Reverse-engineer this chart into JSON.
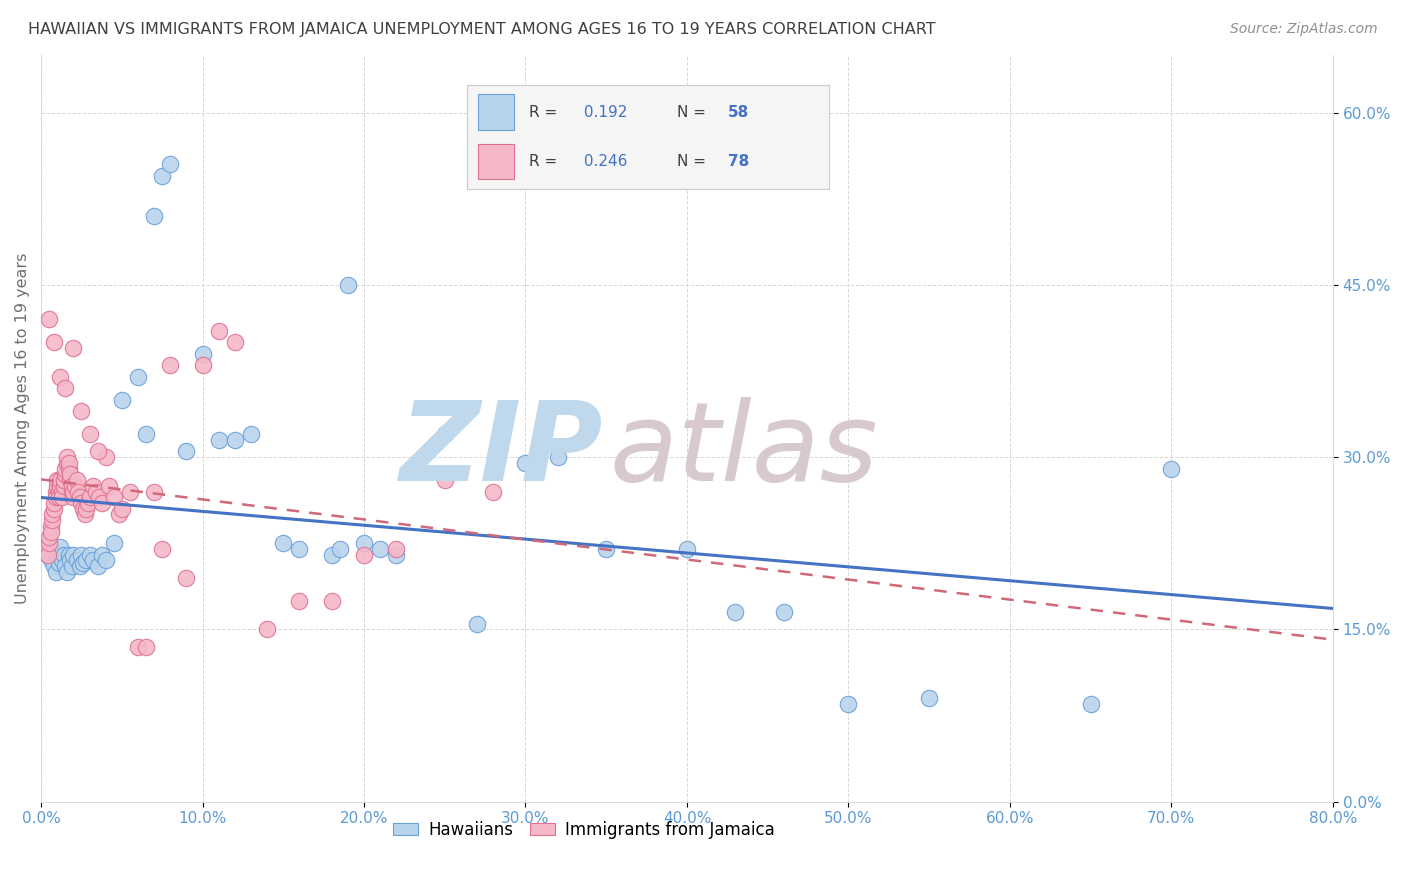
{
  "title": "HAWAIIAN VS IMMIGRANTS FROM JAMAICA UNEMPLOYMENT AMONG AGES 16 TO 19 YEARS CORRELATION CHART",
  "source": "Source: ZipAtlas.com",
  "ylabel": "Unemployment Among Ages 16 to 19 years",
  "xlim": [
    0,
    0.8
  ],
  "ylim": [
    0,
    0.65
  ],
  "x_ticks": [
    0.0,
    0.1,
    0.2,
    0.3,
    0.4,
    0.5,
    0.6,
    0.7,
    0.8
  ],
  "y_ticks": [
    0.0,
    0.15,
    0.3,
    0.45,
    0.6
  ],
  "hawaiians_R": 0.192,
  "hawaiians_N": 58,
  "jamaica_R": 0.246,
  "jamaica_N": 78,
  "hawaiian_fill": "#b8d4ec",
  "hawaiian_edge": "#6a9fd8",
  "jamaica_fill": "#f5b8c8",
  "jamaica_edge": "#e07090",
  "trendline_hawaiian": "#4472c4",
  "trendline_jamaica": "#d06878",
  "tick_color": "#5b9bd5",
  "ylabel_color": "#707070",
  "title_color": "#404040",
  "source_color": "#909090",
  "grid_color": "#d8d8d8",
  "background": "#ffffff",
  "legend_bg": "#f5f5f5",
  "legend_border": "#cccccc",
  "legend_text_color": "#404040",
  "legend_value_color": "#4472c4",
  "watermark_zip_color": "#c0d8ec",
  "watermark_atlas_color": "#d8c8d0",
  "hawaiian_x": [
    0.004,
    0.006,
    0.007,
    0.008,
    0.009,
    0.01,
    0.011,
    0.012,
    0.013,
    0.014,
    0.015,
    0.016,
    0.017,
    0.018,
    0.019,
    0.02,
    0.022,
    0.024,
    0.025,
    0.026,
    0.028,
    0.03,
    0.032,
    0.035,
    0.038,
    0.04,
    0.045,
    0.05,
    0.06,
    0.065,
    0.07,
    0.075,
    0.08,
    0.09,
    0.1,
    0.11,
    0.12,
    0.13,
    0.15,
    0.16,
    0.18,
    0.185,
    0.19,
    0.2,
    0.21,
    0.22,
    0.25,
    0.27,
    0.3,
    0.32,
    0.35,
    0.4,
    0.43,
    0.46,
    0.5,
    0.55,
    0.65,
    0.7
  ],
  "hawaiian_y": [
    0.215,
    0.21,
    0.218,
    0.205,
    0.2,
    0.215,
    0.208,
    0.222,
    0.21,
    0.215,
    0.205,
    0.2,
    0.215,
    0.21,
    0.205,
    0.215,
    0.21,
    0.205,
    0.215,
    0.208,
    0.21,
    0.215,
    0.21,
    0.205,
    0.215,
    0.21,
    0.225,
    0.35,
    0.37,
    0.32,
    0.51,
    0.545,
    0.555,
    0.305,
    0.39,
    0.315,
    0.315,
    0.32,
    0.225,
    0.22,
    0.215,
    0.22,
    0.45,
    0.225,
    0.22,
    0.215,
    0.32,
    0.155,
    0.295,
    0.3,
    0.22,
    0.22,
    0.165,
    0.165,
    0.085,
    0.09,
    0.085,
    0.29
  ],
  "jamaica_x": [
    0.003,
    0.004,
    0.005,
    0.005,
    0.006,
    0.006,
    0.007,
    0.007,
    0.008,
    0.008,
    0.009,
    0.009,
    0.01,
    0.01,
    0.011,
    0.011,
    0.012,
    0.012,
    0.013,
    0.013,
    0.014,
    0.014,
    0.015,
    0.015,
    0.016,
    0.016,
    0.017,
    0.017,
    0.018,
    0.018,
    0.019,
    0.019,
    0.02,
    0.02,
    0.021,
    0.022,
    0.023,
    0.024,
    0.025,
    0.026,
    0.027,
    0.028,
    0.029,
    0.03,
    0.032,
    0.034,
    0.036,
    0.038,
    0.04,
    0.042,
    0.045,
    0.048,
    0.05,
    0.055,
    0.06,
    0.065,
    0.07,
    0.075,
    0.08,
    0.09,
    0.1,
    0.11,
    0.12,
    0.14,
    0.16,
    0.18,
    0.2,
    0.22,
    0.25,
    0.28,
    0.005,
    0.008,
    0.012,
    0.015,
    0.02,
    0.025,
    0.03,
    0.035
  ],
  "jamaica_y": [
    0.22,
    0.215,
    0.225,
    0.23,
    0.24,
    0.235,
    0.245,
    0.25,
    0.255,
    0.26,
    0.27,
    0.265,
    0.275,
    0.28,
    0.27,
    0.265,
    0.275,
    0.28,
    0.27,
    0.265,
    0.275,
    0.28,
    0.285,
    0.29,
    0.295,
    0.3,
    0.29,
    0.295,
    0.28,
    0.285,
    0.27,
    0.275,
    0.265,
    0.27,
    0.275,
    0.28,
    0.27,
    0.265,
    0.26,
    0.255,
    0.25,
    0.255,
    0.26,
    0.265,
    0.275,
    0.27,
    0.265,
    0.26,
    0.3,
    0.275,
    0.265,
    0.25,
    0.255,
    0.27,
    0.135,
    0.135,
    0.27,
    0.22,
    0.38,
    0.195,
    0.38,
    0.41,
    0.4,
    0.15,
    0.175,
    0.175,
    0.215,
    0.22,
    0.28,
    0.27,
    0.42,
    0.4,
    0.37,
    0.36,
    0.395,
    0.34,
    0.32,
    0.305
  ]
}
